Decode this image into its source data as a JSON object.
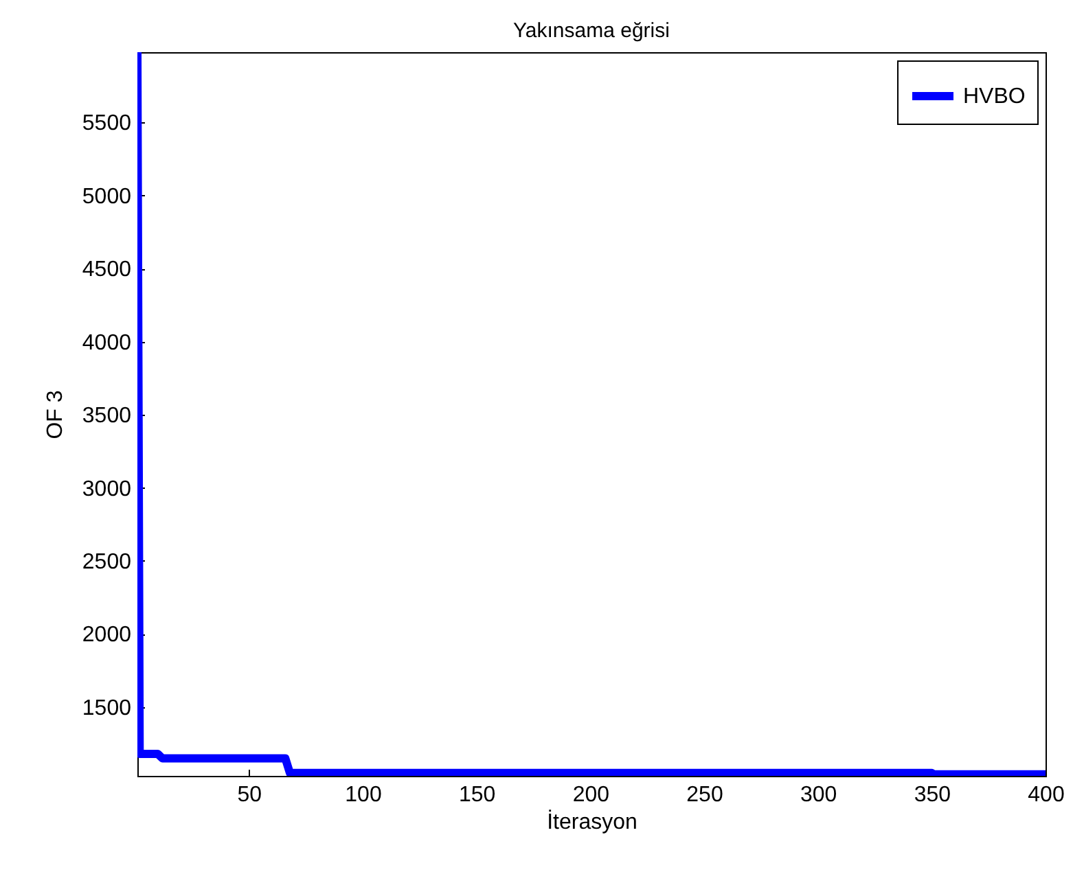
{
  "chart_data": {
    "type": "line",
    "title": "Yakınsama eğrisi",
    "xlabel": "İterasyon",
    "ylabel": "OF 3",
    "x": [
      1,
      2,
      10,
      12,
      66,
      68,
      350,
      351,
      400
    ],
    "series": [
      {
        "name": "HVBO",
        "color": "#0000ff",
        "values": [
          5980,
          1180,
          1180,
          1150,
          1150,
          1050,
          1050,
          1040,
          1040
        ]
      }
    ],
    "xlim": [
      1,
      400
    ],
    "xticks": [
      50,
      100,
      150,
      200,
      250,
      300,
      350,
      400
    ],
    "ylim": [
      1030,
      5980
    ],
    "yticks": [
      1500,
      2000,
      2500,
      3000,
      3500,
      4000,
      4500,
      5000,
      5500
    ],
    "legend": "top right",
    "grid": false,
    "marker": "none",
    "line_style": "solid"
  }
}
